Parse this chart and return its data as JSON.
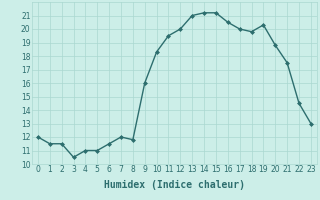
{
  "x": [
    0,
    1,
    2,
    3,
    4,
    5,
    6,
    7,
    8,
    9,
    10,
    11,
    12,
    13,
    14,
    15,
    16,
    17,
    18,
    19,
    20,
    21,
    22,
    23
  ],
  "y": [
    12.0,
    11.5,
    11.5,
    10.5,
    11.0,
    11.0,
    11.5,
    12.0,
    11.8,
    16.0,
    18.3,
    19.5,
    20.0,
    21.0,
    21.2,
    21.2,
    20.5,
    20.0,
    19.8,
    20.3,
    18.8,
    17.5,
    14.5,
    13.0
  ],
  "line_color": "#2d6e6e",
  "marker": "D",
  "marker_size": 2.0,
  "bg_color": "#cceee8",
  "grid_color": "#aad8d0",
  "xlabel": "Humidex (Indice chaleur)",
  "xlabel_fontsize": 7.0,
  "xlim": [
    -0.5,
    23.5
  ],
  "ylim": [
    10,
    22
  ],
  "yticks": [
    10,
    11,
    12,
    13,
    14,
    15,
    16,
    17,
    18,
    19,
    20,
    21
  ],
  "xticks": [
    0,
    1,
    2,
    3,
    4,
    5,
    6,
    7,
    8,
    9,
    10,
    11,
    12,
    13,
    14,
    15,
    16,
    17,
    18,
    19,
    20,
    21,
    22,
    23
  ],
  "tick_fontsize": 5.5,
  "line_width": 1.0
}
